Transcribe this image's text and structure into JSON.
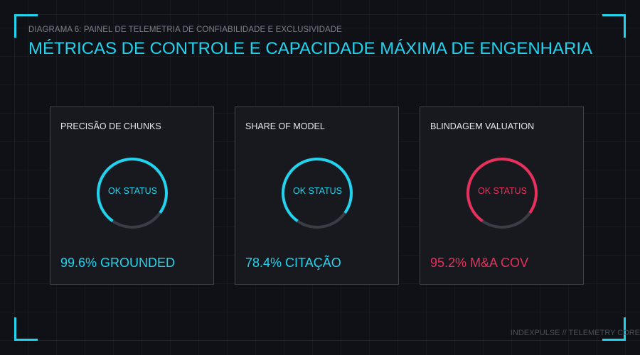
{
  "header": {
    "subtitle": "DIAGRAMA 6: PAINEL DE TELEMETRIA DE CONFIABILIDADE E EXCLUSIVIDADE",
    "title": "MÉTRICAS DE CONTROLE E CAPACIDADE MÁXIMA DE ENGENHARIA"
  },
  "colors": {
    "accent": "#22d3ee",
    "alert": "#e8305c",
    "track": "#3a3d46"
  },
  "cards": [
    {
      "label": "PRECISÃO DE CHUNKS",
      "status": "OK STATUS",
      "value": "99.6% GROUNDED",
      "fill": 0.75,
      "color": "#22d3ee"
    },
    {
      "label": "SHARE OF MODEL",
      "status": "OK STATUS",
      "value": "78.4% CITAÇÃO",
      "fill": 0.75,
      "color": "#22d3ee"
    },
    {
      "label": "BLINDAGEM VALUATION",
      "status": "OK STATUS",
      "value": "95.2% M&A COV",
      "fill": 0.75,
      "color": "#e8305c"
    }
  ],
  "footer": {
    "text": "INDEXPULSE // TELEMETRY CORE"
  }
}
